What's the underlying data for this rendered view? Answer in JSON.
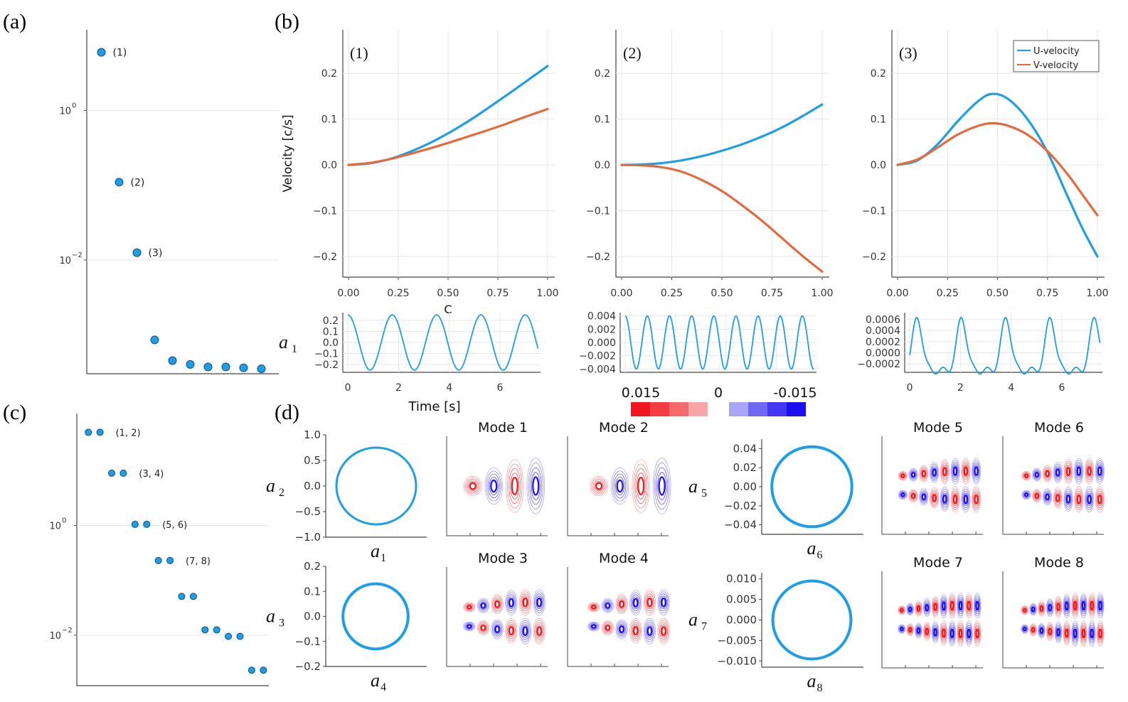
{
  "panel_labels": {
    "a": "(a)",
    "b": "(b)",
    "c": "(c)",
    "d": "(d)"
  },
  "colors": {
    "u": "#1f9ee8",
    "v": "#e26a3f",
    "pos": "#f0161d",
    "neg": "#1d0ef0"
  },
  "chart_data": [
    {
      "id": "a",
      "type": "scatter",
      "scale": "log",
      "title": "",
      "xlabel": "",
      "ylabel": "",
      "ylim": [
        0.0003,
        12
      ],
      "y_ticks": [
        {
          "v": 1,
          "base": "10",
          "exp": "0"
        },
        {
          "v": 0.01,
          "base": "10",
          "exp": "−2"
        }
      ],
      "values": [
        6.0,
        0.11,
        0.0125,
        0.00085,
        0.00045,
        0.0004,
        0.00037,
        0.00037,
        0.00036,
        0.00035
      ],
      "labels": [
        "(1)",
        "(2)",
        "(3)",
        "",
        "",
        "",
        "",
        "",
        "",
        ""
      ]
    },
    {
      "id": "c",
      "type": "scatter",
      "scale": "log",
      "title": "",
      "xlabel": "",
      "ylabel": "",
      "ylim": [
        0.0012,
        110
      ],
      "y_ticks": [
        {
          "v": 1,
          "base": "10",
          "exp": "0"
        },
        {
          "v": 0.01,
          "base": "10",
          "exp": "−2"
        }
      ],
      "values": [
        50,
        50,
        9,
        9,
        1.05,
        1.05,
        0.23,
        0.23,
        0.051,
        0.051,
        0.0125,
        0.0125,
        0.0095,
        0.0095,
        0.0023,
        0.0023
      ],
      "pair_labels": [
        "(1, 2)",
        "(3, 4)",
        "(5, 6)",
        "(7, 8)",
        "",
        "",
        "",
        ""
      ]
    },
    {
      "id": "b1",
      "type": "line",
      "title": "(1)",
      "xlabel": "C",
      "ylabel": "Velocity [c/s]",
      "xlim": [
        0,
        1
      ],
      "ylim": [
        -0.245,
        0.295
      ],
      "x_ticks": [
        "0.00",
        "0.25",
        "0.50",
        "0.75",
        "1.00"
      ],
      "y_ticks": [
        "0.2",
        "0.1",
        "0.0",
        "−0.1",
        "−0.2"
      ],
      "x": [
        0,
        0.1,
        0.2,
        0.3,
        0.4,
        0.5,
        0.6,
        0.7,
        0.8,
        0.9,
        1.0
      ],
      "series": [
        {
          "name": "U-velocity",
          "values": [
            0,
            0.003,
            0.012,
            0.027,
            0.046,
            0.069,
            0.095,
            0.124,
            0.154,
            0.185,
            0.216
          ]
        },
        {
          "name": "V-velocity",
          "values": [
            0,
            0.004,
            0.012,
            0.023,
            0.035,
            0.048,
            0.062,
            0.076,
            0.091,
            0.107,
            0.122
          ]
        }
      ]
    },
    {
      "id": "b2",
      "type": "line",
      "title": "(2)",
      "xlabel": "",
      "ylabel": "",
      "xlim": [
        0,
        1
      ],
      "ylim": [
        -0.245,
        0.295
      ],
      "x_ticks": [
        "0.00",
        "0.25",
        "0.50",
        "0.75",
        "1.00"
      ],
      "y_ticks": [
        "0.2",
        "0.1",
        "0.0",
        "−0.1",
        "−0.2"
      ],
      "x": [
        0,
        0.1,
        0.2,
        0.3,
        0.4,
        0.5,
        0.6,
        0.7,
        0.8,
        0.9,
        1.0
      ],
      "series": [
        {
          "name": "U-velocity",
          "values": [
            0,
            0.001,
            0.004,
            0.01,
            0.019,
            0.031,
            0.045,
            0.062,
            0.082,
            0.106,
            0.132
          ]
        },
        {
          "name": "V-velocity",
          "values": [
            0,
            -0.001,
            -0.005,
            -0.015,
            -0.033,
            -0.057,
            -0.088,
            -0.122,
            -0.16,
            -0.198,
            -0.233
          ]
        }
      ]
    },
    {
      "id": "b3",
      "type": "line",
      "title": "(3)",
      "xlabel": "",
      "ylabel": "",
      "xlim": [
        0,
        1
      ],
      "ylim": [
        -0.245,
        0.295
      ],
      "x_ticks": [
        "0.00",
        "0.25",
        "0.50",
        "0.75",
        "1.00"
      ],
      "y_ticks": [
        "0.2",
        "0.1",
        "0.0",
        "−0.1",
        "−0.2"
      ],
      "legend": "top-right",
      "x": [
        0,
        0.1,
        0.2,
        0.3,
        0.4,
        0.47,
        0.55,
        0.65,
        0.75,
        0.85,
        0.93,
        1.0
      ],
      "series": [
        {
          "name": "U-velocity",
          "values": [
            0,
            0.01,
            0.045,
            0.095,
            0.138,
            0.155,
            0.145,
            0.1,
            0.028,
            -0.068,
            -0.143,
            -0.2
          ]
        },
        {
          "name": "V-velocity",
          "values": [
            0,
            0.012,
            0.038,
            0.066,
            0.085,
            0.091,
            0.086,
            0.066,
            0.03,
            -0.02,
            -0.068,
            -0.11
          ]
        }
      ]
    },
    {
      "id": "ts1",
      "type": "line",
      "xlabel": "Time [s]",
      "ylabel": "a",
      "ylabel_sub": "1",
      "xlim": [
        -0.2,
        7.6
      ],
      "ylim": [
        -0.27,
        0.27
      ],
      "x_ticks": [
        0,
        2,
        4,
        6
      ],
      "y_ticks": [
        "0.2",
        "0.1",
        "0.0",
        "−0.1",
        "−0.2"
      ],
      "y_tick_values": [
        0.2,
        0.1,
        0,
        -0.1,
        -0.2
      ],
      "wave": {
        "kind": "sine",
        "amplitude": 0.25,
        "period": 1.75,
        "t_max": 7.5,
        "phase": 1.5708
      }
    },
    {
      "id": "ts2",
      "type": "line",
      "xlabel": "",
      "ylabel": "",
      "xlim": [
        -0.2,
        7.6
      ],
      "ylim": [
        -0.0045,
        0.0045
      ],
      "x_ticks": [],
      "y_ticks": [
        "0.004",
        "0.002",
        "0.000",
        "−0.002",
        "−0.004"
      ],
      "y_tick_values": [
        0.004,
        0.002,
        0,
        -0.002,
        -0.004
      ],
      "wave": {
        "kind": "sine",
        "amplitude": 0.004,
        "period": 0.88,
        "t_max": 7.5,
        "phase": 1.5708
      }
    },
    {
      "id": "ts3",
      "type": "line",
      "xlabel": "",
      "ylabel": "",
      "xlim": [
        -0.2,
        7.6
      ],
      "ylim": [
        -0.00035,
        0.00072
      ],
      "x_ticks": [
        0,
        2,
        4,
        6
      ],
      "y_ticks": [
        "0.0006",
        "0.0004",
        "0.0002",
        "0.0000",
        "−0.0002"
      ],
      "y_tick_values": [
        0.0006,
        0.0004,
        0.0002,
        0,
        -0.0002
      ],
      "wave": {
        "kind": "pulse",
        "amplitude": 0.00095,
        "offset": -0.00032,
        "period": 1.75,
        "t_max": 7.5,
        "phase": 0.3
      }
    },
    {
      "id": "phase",
      "type": "phase-portrait",
      "plots": [
        {
          "name": "a1-a2",
          "xlabel": "a",
          "xsub": "1",
          "ylabel": "a",
          "ysub": "2",
          "radius": 0.75,
          "ylim": [
            -1.0,
            1.0
          ],
          "y_ticks": [
            "1.0",
            "0.5",
            "0.0",
            "−0.5",
            "−1.0"
          ],
          "y_tick_values": [
            1.0,
            0.5,
            0,
            -0.5,
            -1.0
          ]
        },
        {
          "name": "a4-a3",
          "xlabel": "a",
          "xsub": "4",
          "ylabel": "a",
          "ysub": "3",
          "radius": 0.13,
          "ylim": [
            -0.2,
            0.2
          ],
          "y_ticks": [
            "0.2",
            "0.1",
            "0.0",
            "−0.1",
            "−0.2"
          ],
          "y_tick_values": [
            0.2,
            0.1,
            0,
            -0.1,
            -0.2
          ]
        },
        {
          "name": "a6-a5",
          "xlabel": "a",
          "xsub": "6",
          "ylabel": "a",
          "ysub": "5",
          "radius": 0.042,
          "ylim": [
            -0.05,
            0.05
          ],
          "y_ticks": [
            "0.04",
            "0.02",
            "0.00",
            "−0.02",
            "−0.04"
          ],
          "y_tick_values": [
            0.04,
            0.02,
            0,
            -0.02,
            -0.04
          ]
        },
        {
          "name": "a8-a7",
          "xlabel": "a",
          "xsub": "8",
          "ylabel": "a",
          "ysub": "7",
          "radius": 0.0095,
          "ylim": [
            -0.0115,
            0.0115
          ],
          "y_ticks": [
            "0.010",
            "0.005",
            "0.000",
            "−0.005",
            "−0.010"
          ],
          "y_tick_values": [
            0.01,
            0.005,
            0,
            -0.005,
            -0.01
          ]
        }
      ]
    }
  ],
  "colorbar": {
    "left_label": "0.015",
    "mid_label": "0",
    "right_label": "-0.015",
    "reds": [
      "#f0161d",
      "#f23d42",
      "#f46a6d",
      "#f8a5a7"
    ],
    "blues": [
      "#a9a6f3",
      "#6f68f2",
      "#4437f1",
      "#1d0ef0"
    ]
  },
  "modes": [
    "Mode 1",
    "Mode 2",
    "Mode 3",
    "Mode 4",
    "Mode 5",
    "Mode 6",
    "Mode 7",
    "Mode 8"
  ]
}
